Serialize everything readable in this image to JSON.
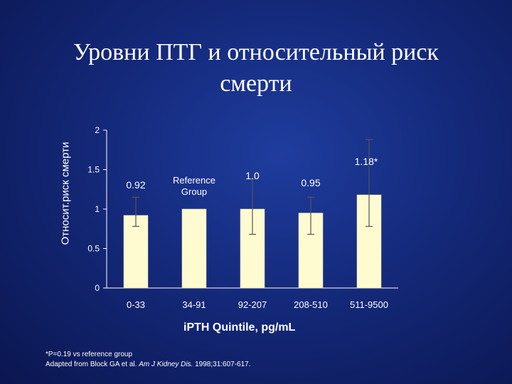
{
  "title": {
    "line1": "Уровни ПТГ и относительный риск",
    "line2": "смерти"
  },
  "chart_data": {
    "type": "bar",
    "title": "Уровни ПТГ и относительный риск смерти",
    "xlabel": "iPTH Quintile, pg/mL",
    "ylabel": "Относит.риск смерти",
    "ylim": [
      0,
      2
    ],
    "yticks": [
      "0",
      "0.5",
      "1",
      "1.5",
      "2"
    ],
    "categories": [
      "0-33",
      "34-91",
      "92-207",
      "208-510",
      "511-9500"
    ],
    "values": [
      0.92,
      1.0,
      1.0,
      0.95,
      1.18
    ],
    "error_low": [
      0.78,
      null,
      0.68,
      0.68,
      0.78
    ],
    "error_high": [
      1.15,
      null,
      1.38,
      1.15,
      1.88
    ],
    "data_labels": [
      "0.92",
      "Reference Group",
      "1.0",
      "0.95",
      "1.18*"
    ],
    "grid": false,
    "bar_color": "#fffbd0",
    "text_color": "#ffffff"
  },
  "footnote": {
    "line1": "*P=0.19 vs reference group",
    "line2_prefix": "Adapted from Block GA et al. ",
    "line2_journal": "Am J Kidney Dis.",
    "line2_suffix": " 1998;31:607-617."
  }
}
